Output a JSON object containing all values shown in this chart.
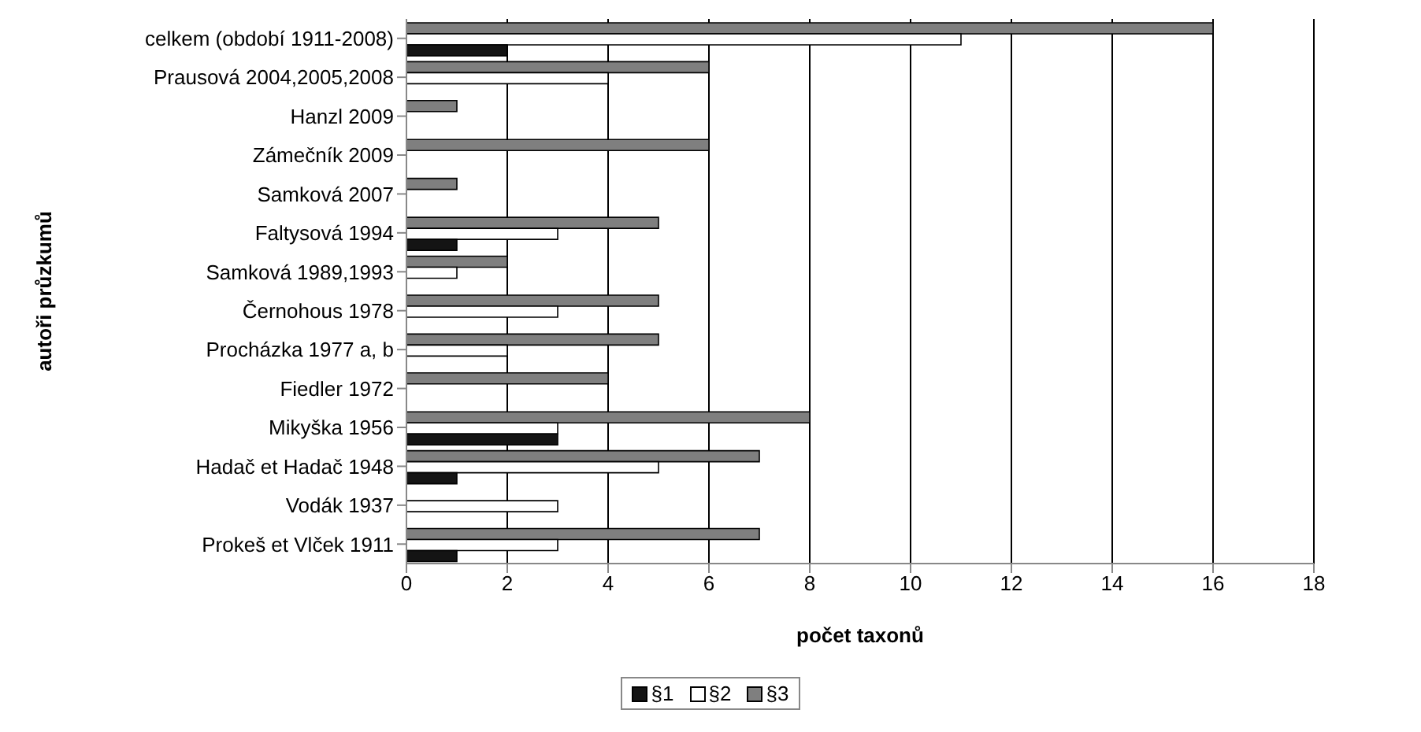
{
  "chart_data": {
    "type": "bar",
    "orientation": "horizontal",
    "xlabel": "počet taxonů",
    "ylabel": "autoři průzkumů",
    "categories": [
      "celkem (období 1911-2008)",
      "Prausová 2004,2005,2008",
      "Hanzl 2009",
      "Zámečník 2009",
      "Samková 2007",
      "Faltysová 1994",
      "Samková 1989,1993",
      "Černohous 1978",
      "Procházka 1977 a, b",
      "Fiedler 1972",
      "Mikyška 1956",
      "Hadač et Hadač 1948",
      "Vodák 1937",
      "Prokeš et Vlček 1911"
    ],
    "series": [
      {
        "name": "§1",
        "color": "#141414",
        "values": [
          2,
          0,
          0,
          0,
          0,
          1,
          0,
          0,
          0,
          0,
          3,
          1,
          0,
          1
        ]
      },
      {
        "name": "§2",
        "color": "#ffffff",
        "values": [
          11,
          4,
          0,
          0,
          0,
          3,
          1,
          3,
          2,
          0,
          3,
          5,
          3,
          3
        ]
      },
      {
        "name": "§3",
        "color": "#7f7f7f",
        "values": [
          16,
          6,
          1,
          6,
          1,
          5,
          2,
          5,
          5,
          4,
          8,
          7,
          0,
          7
        ]
      }
    ],
    "xlim": [
      0,
      18
    ],
    "xticks": [
      0,
      2,
      4,
      6,
      8,
      10,
      12,
      14,
      16,
      18
    ],
    "grid": "x",
    "legend": "bottom"
  }
}
